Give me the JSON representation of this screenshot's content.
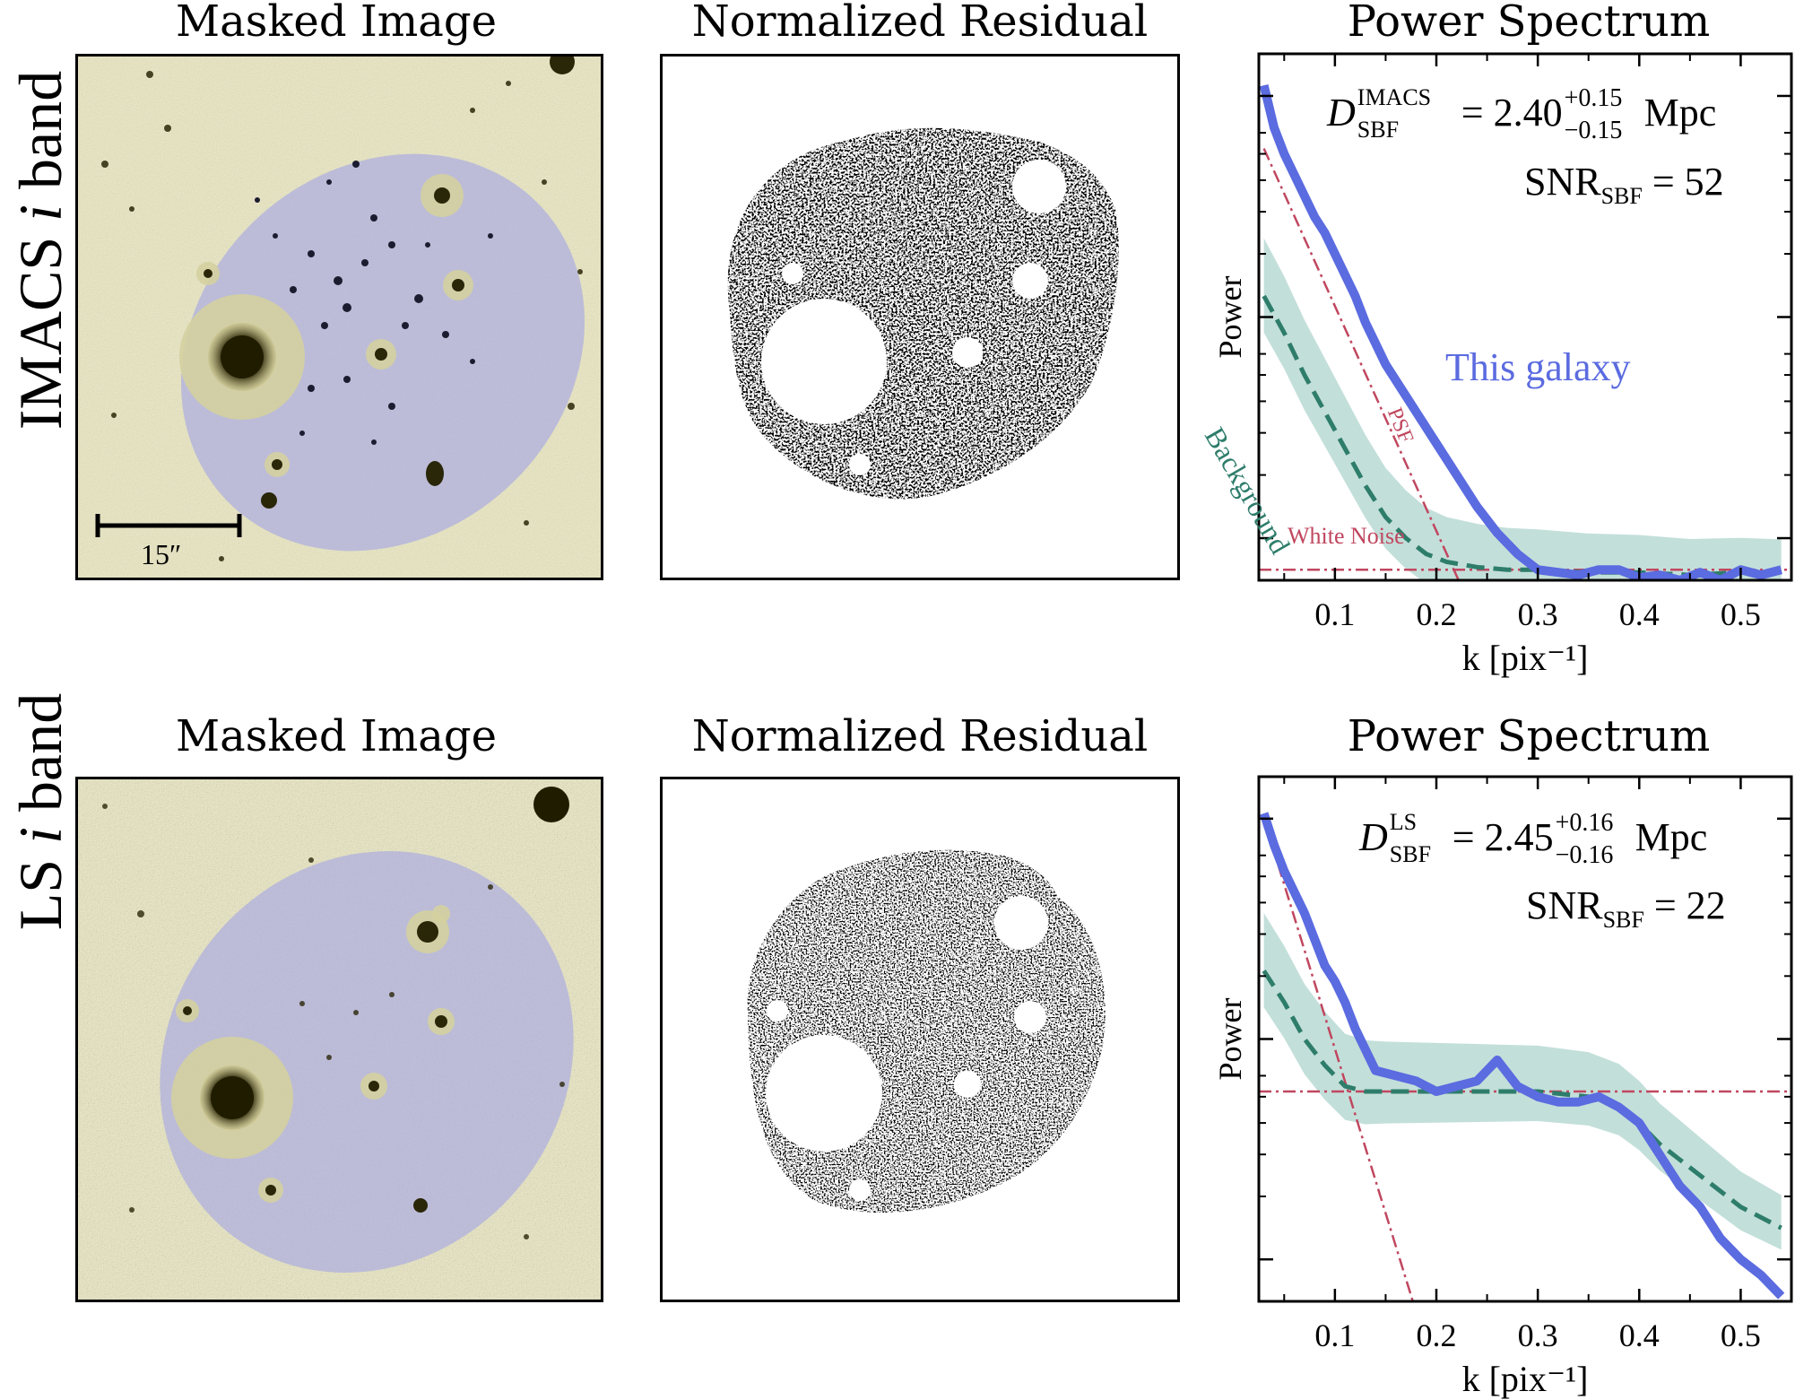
{
  "rows": [
    {
      "row_label_main": "IMACS",
      "row_label_italic": "i",
      "row_label_end": "band",
      "panel_titles": [
        "Masked Image",
        "Normalized Residual",
        "Power Spectrum"
      ],
      "scale_bar_label": "15″",
      "annotation_distance": {
        "symbol": "D",
        "sub": "SBF",
        "sup": "IMACS",
        "value": "= 2.40",
        "err_plus": "+0.15",
        "err_minus": "−0.15",
        "unit": "Mpc"
      },
      "annotation_snr": {
        "symbol": "SNR",
        "sub": "SBF",
        "value": "= 52"
      },
      "legend_galaxy": "This galaxy",
      "legend_background": "Background",
      "legend_psf": "PSF",
      "legend_white_noise": "White Noise"
    },
    {
      "row_label_main": "LS",
      "row_label_italic": "i",
      "row_label_end": "band",
      "panel_titles": [
        "Masked Image",
        "Normalized Residual",
        "Power Spectrum"
      ],
      "annotation_distance": {
        "symbol": "D",
        "sub": "SBF",
        "sup": "LS",
        "value": "= 2.45",
        "err_plus": "+0.16",
        "err_minus": "−0.16",
        "unit": "Mpc"
      },
      "annotation_snr": {
        "symbol": "SNR",
        "sub": "SBF",
        "value": "= 22"
      }
    }
  ],
  "colors": {
    "galaxy": "#5b6be0",
    "background": "#2e7d6b",
    "band": "#b9d9d3",
    "psf": "#c0475f",
    "sky": "#ece9c2",
    "mask": "#b8b8dc"
  },
  "chart_data": [
    {
      "type": "line",
      "title": "Power Spectrum",
      "xlabel": "k [pix⁻¹]",
      "ylabel": "Power",
      "xlim": [
        0.025,
        0.55
      ],
      "ylim": [
        0,
        1
      ],
      "xticks": [
        0.1,
        0.2,
        0.3,
        0.4,
        0.5
      ],
      "xtick_labels": [
        "0.1",
        "0.2",
        "0.3",
        "0.4",
        "0.5"
      ],
      "series": [
        {
          "name": "This galaxy",
          "x": [
            0.03,
            0.04,
            0.05,
            0.06,
            0.07,
            0.08,
            0.09,
            0.1,
            0.11,
            0.12,
            0.13,
            0.14,
            0.15,
            0.16,
            0.17,
            0.18,
            0.19,
            0.2,
            0.22,
            0.24,
            0.26,
            0.28,
            0.3,
            0.32,
            0.34,
            0.36,
            0.38,
            0.4,
            0.42,
            0.44,
            0.46,
            0.48,
            0.5,
            0.52,
            0.54
          ],
          "y": [
            0.94,
            0.86,
            0.81,
            0.77,
            0.73,
            0.69,
            0.66,
            0.62,
            0.58,
            0.54,
            0.49,
            0.45,
            0.41,
            0.38,
            0.35,
            0.32,
            0.29,
            0.26,
            0.2,
            0.14,
            0.09,
            0.05,
            0.02,
            0.015,
            0.01,
            0.02,
            0.02,
            0.005,
            0.01,
            0.0,
            0.015,
            0.0,
            0.02,
            0.01,
            0.02
          ]
        },
        {
          "name": "Background",
          "x": [
            0.03,
            0.05,
            0.07,
            0.09,
            0.11,
            0.13,
            0.15,
            0.17,
            0.19,
            0.21,
            0.24,
            0.27,
            0.3,
            0.35,
            0.4,
            0.45,
            0.5,
            0.54
          ],
          "y": [
            0.54,
            0.47,
            0.39,
            0.32,
            0.25,
            0.18,
            0.12,
            0.08,
            0.05,
            0.035,
            0.025,
            0.02,
            0.02,
            0.015,
            0.015,
            0.01,
            0.015,
            0.015
          ]
        },
        {
          "name": "PSF",
          "x": [
            0.03,
            0.25
          ],
          "y": [
            0.82,
            -0.12
          ]
        },
        {
          "name": "White Noise",
          "x": [
            0.025,
            0.55
          ],
          "y": [
            0.02,
            0.02
          ]
        }
      ]
    },
    {
      "type": "line",
      "title": "Power Spectrum",
      "xlabel": "k [pix⁻¹]",
      "ylabel": "Power",
      "xlim": [
        0.025,
        0.55
      ],
      "ylim": [
        0,
        1
      ],
      "xticks": [
        0.1,
        0.2,
        0.3,
        0.4,
        0.5
      ],
      "xtick_labels": [
        "0.1",
        "0.2",
        "0.3",
        "0.4",
        "0.5"
      ],
      "series": [
        {
          "name": "This galaxy",
          "x": [
            0.03,
            0.04,
            0.05,
            0.06,
            0.07,
            0.08,
            0.09,
            0.1,
            0.11,
            0.12,
            0.13,
            0.14,
            0.16,
            0.18,
            0.2,
            0.22,
            0.24,
            0.26,
            0.28,
            0.3,
            0.32,
            0.34,
            0.36,
            0.38,
            0.4,
            0.42,
            0.44,
            0.46,
            0.48,
            0.5,
            0.52,
            0.54
          ],
          "y": [
            0.93,
            0.87,
            0.82,
            0.78,
            0.74,
            0.69,
            0.64,
            0.61,
            0.57,
            0.52,
            0.48,
            0.44,
            0.43,
            0.42,
            0.4,
            0.41,
            0.42,
            0.46,
            0.41,
            0.39,
            0.38,
            0.38,
            0.39,
            0.37,
            0.34,
            0.28,
            0.22,
            0.18,
            0.12,
            0.08,
            0.05,
            0.01
          ]
        },
        {
          "name": "Background",
          "x": [
            0.03,
            0.05,
            0.07,
            0.09,
            0.11,
            0.13,
            0.15,
            0.2,
            0.25,
            0.3,
            0.35,
            0.38,
            0.4,
            0.42,
            0.44,
            0.46,
            0.48,
            0.5,
            0.52,
            0.54
          ],
          "y": [
            0.63,
            0.57,
            0.5,
            0.45,
            0.41,
            0.4,
            0.4,
            0.4,
            0.4,
            0.4,
            0.39,
            0.37,
            0.34,
            0.3,
            0.27,
            0.24,
            0.21,
            0.18,
            0.16,
            0.14
          ]
        },
        {
          "name": "PSF",
          "x": [
            0.03,
            0.18
          ],
          "y": [
            0.92,
            -0.02
          ]
        },
        {
          "name": "White Noise",
          "x": [
            0.025,
            0.55
          ],
          "y": [
            0.4,
            0.4
          ]
        }
      ]
    }
  ]
}
